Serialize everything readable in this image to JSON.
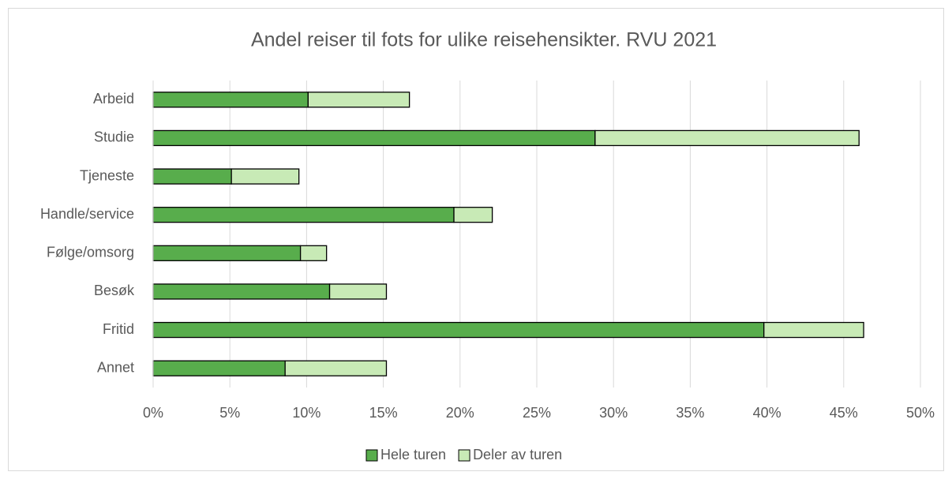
{
  "chart_data": {
    "type": "stacked_barh",
    "title": "Andel reiser til fots for ulike reisehensikter. RVU 2021",
    "categories": [
      "Arbeid",
      "Studie",
      "Tjeneste",
      "Handle/service",
      "Følge/omsorg",
      "Besøk",
      "Fritid",
      "Annet"
    ],
    "series": [
      {
        "name": "Hele turen",
        "color": "#58ad4c",
        "values": [
          10.1,
          28.8,
          5.1,
          19.6,
          9.6,
          11.5,
          39.8,
          8.6
        ]
      },
      {
        "name": "Deler av turen",
        "color": "#c8eab6",
        "values": [
          6.6,
          17.2,
          4.4,
          2.5,
          1.7,
          3.7,
          6.5,
          6.6
        ]
      }
    ],
    "xlim": [
      0,
      50
    ],
    "xticks": [
      {
        "value": 0,
        "label": "0%"
      },
      {
        "value": 5,
        "label": "5%"
      },
      {
        "value": 10,
        "label": "10%"
      },
      {
        "value": 15,
        "label": "15%"
      },
      {
        "value": 20,
        "label": "20%"
      },
      {
        "value": 25,
        "label": "25%"
      },
      {
        "value": 30,
        "label": "30%"
      },
      {
        "value": 35,
        "label": "35%"
      },
      {
        "value": 40,
        "label": "40%"
      },
      {
        "value": 45,
        "label": "45%"
      },
      {
        "value": 50,
        "label": "50%"
      }
    ],
    "grid": true,
    "legend": "bottom"
  }
}
